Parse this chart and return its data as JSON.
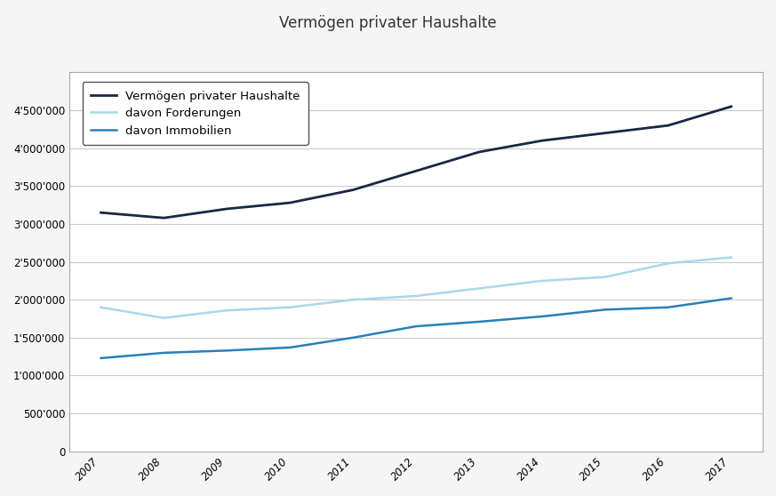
{
  "title": "Vermögen privater Haushalte",
  "years": [
    2007,
    2008,
    2009,
    2010,
    2011,
    2012,
    2013,
    2014,
    2015,
    2016,
    2017
  ],
  "vermoegen": [
    3150000,
    3080000,
    3200000,
    3280000,
    3450000,
    3700000,
    3950000,
    4100000,
    4200000,
    4300000,
    4550000
  ],
  "forderungen": [
    1900000,
    1760000,
    1860000,
    1900000,
    2000000,
    2050000,
    2150000,
    2250000,
    2300000,
    2480000,
    2560000
  ],
  "immobilien": [
    1230000,
    1300000,
    1330000,
    1370000,
    1500000,
    1650000,
    1710000,
    1780000,
    1870000,
    1900000,
    2020000
  ],
  "line_color_vermoegen": "#1a2744",
  "line_color_forderungen": "#a8d8ea",
  "line_color_immobilien": "#2980b9",
  "legend_labels": [
    "Vermögen privater Haushalte",
    "davon Forderungen",
    "davon Immobilien"
  ],
  "ylim": [
    0,
    5000000
  ],
  "yticks": [
    0,
    500000,
    1000000,
    1500000,
    2000000,
    2500000,
    3000000,
    3500000,
    4000000,
    4500000
  ],
  "background_color": "#f5f5f5",
  "plot_background": "#ffffff",
  "grid_color": "#cccccc",
  "title_fontsize": 12,
  "legend_fontsize": 9.5,
  "tick_fontsize": 8.5
}
